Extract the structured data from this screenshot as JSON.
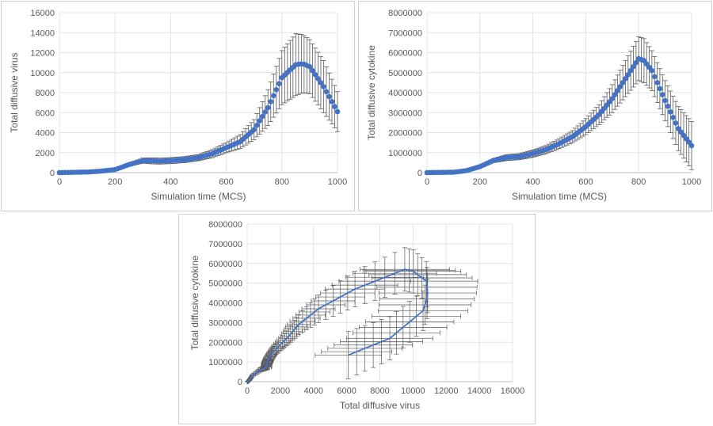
{
  "chart_data": [
    {
      "type": "scatter",
      "xlabel": "Simulation time (MCS)",
      "ylabel": "Total diffusive virus",
      "xlim": [
        0,
        1000
      ],
      "ylim": [
        0,
        16000
      ],
      "xticks": [
        "0",
        "200",
        "400",
        "600",
        "800",
        "1000"
      ],
      "yticks": [
        "0",
        "2000",
        "4000",
        "6000",
        "8000",
        "10000",
        "12000",
        "14000",
        "16000"
      ],
      "series_color": "#4472c4",
      "error_bar_color": "#595959",
      "knots_x": [
        0,
        100,
        150,
        200,
        250,
        300,
        330,
        360,
        400,
        450,
        500,
        550,
        600,
        650,
        700,
        750,
        800,
        850,
        875,
        900,
        950,
        1000
      ],
      "knots_y": [
        0,
        60,
        150,
        300,
        800,
        1200,
        1180,
        1150,
        1200,
        1300,
        1500,
        1900,
        2500,
        3100,
        4300,
        6500,
        9500,
        10800,
        10900,
        10600,
        8600,
        6100
      ],
      "knots_err": [
        0,
        20,
        40,
        60,
        150,
        250,
        300,
        300,
        300,
        300,
        300,
        400,
        500,
        700,
        1000,
        1800,
        2700,
        3100,
        2900,
        2700,
        2600,
        2000
      ],
      "x_step": 10,
      "grid": "vertical and horizontal",
      "legend": "none"
    },
    {
      "type": "scatter",
      "xlabel": "Simulation time (MCS)",
      "ylabel": "Total diffusive cytokine",
      "xlim": [
        0,
        1000
      ],
      "ylim": [
        0,
        8000000
      ],
      "xticks": [
        "0",
        "200",
        "400",
        "600",
        "800",
        "1000"
      ],
      "yticks": [
        "0",
        "1000000",
        "2000000",
        "3000000",
        "4000000",
        "5000000",
        "6000000",
        "7000000",
        "8000000"
      ],
      "series_color": "#4472c4",
      "error_bar_color": "#595959",
      "knots_x": [
        0,
        100,
        150,
        200,
        250,
        300,
        350,
        400,
        450,
        500,
        550,
        600,
        650,
        700,
        750,
        800,
        820,
        850,
        900,
        950,
        1000
      ],
      "knots_y": [
        0,
        20000,
        100000,
        300000,
        600000,
        750000,
        800000,
        950000,
        1150000,
        1450000,
        1800000,
        2300000,
        2900000,
        3700000,
        4700000,
        5700000,
        5600000,
        5100000,
        3600000,
        2200000,
        1350000
      ],
      "knots_err": [
        0,
        10000,
        40000,
        60000,
        100000,
        150000,
        150000,
        180000,
        200000,
        250000,
        300000,
        400000,
        500000,
        700000,
        900000,
        1100000,
        1100000,
        1000000,
        1000000,
        1100000,
        1200000
      ],
      "x_step": 10,
      "grid": "vertical and horizontal",
      "legend": "none"
    },
    {
      "type": "line",
      "xlabel": "Total diffusive virus",
      "ylabel": "Total diffusive cytokine",
      "xlim": [
        0,
        16000
      ],
      "ylim": [
        0,
        8000000
      ],
      "xticks": [
        "0",
        "2000",
        "4000",
        "6000",
        "8000",
        "10000",
        "12000",
        "14000",
        "16000"
      ],
      "yticks": [
        "0",
        "1000000",
        "2000000",
        "3000000",
        "4000000",
        "5000000",
        "6000000",
        "7000000",
        "8000000"
      ],
      "series_color": "#4472c4",
      "error_bar_color": "#595959",
      "parametric_of": "simulation time, paired from the two upper charts",
      "grid": "vertical and horizontal",
      "legend": "none"
    }
  ]
}
